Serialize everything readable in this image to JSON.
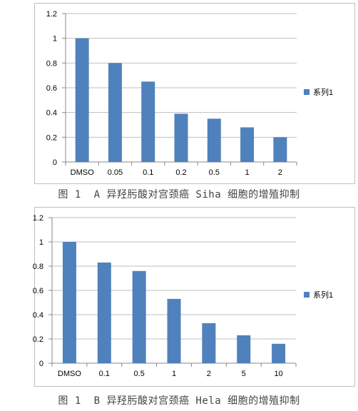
{
  "chart_data": [
    {
      "type": "bar",
      "categories": [
        "DMSO",
        "0.05",
        "0.1",
        "0.2",
        "0.5",
        "1",
        "2"
      ],
      "series": [
        {
          "name": "系列1",
          "values": [
            1.0,
            0.8,
            0.65,
            0.39,
            0.35,
            0.28,
            0.2
          ],
          "color": "#4f81bd"
        }
      ],
      "ylim": [
        0,
        1.2
      ],
      "yticks": [
        "0",
        "0.2",
        "0.4",
        "0.6",
        "0.8",
        "1",
        "1.2"
      ],
      "grid": true,
      "legend": "right",
      "caption": "图 1  A 异羟肟酸对宫颈癌 Siha 细胞的增殖抑制"
    },
    {
      "type": "bar",
      "categories": [
        "DMSO",
        "0.1",
        "0.5",
        "1",
        "2",
        "5",
        "10"
      ],
      "series": [
        {
          "name": "系列1",
          "values": [
            1.0,
            0.83,
            0.76,
            0.53,
            0.33,
            0.23,
            0.16
          ],
          "color": "#4f81bd"
        }
      ],
      "ylim": [
        0,
        1.2
      ],
      "yticks": [
        "0",
        "0.2",
        "0.4",
        "0.6",
        "0.8",
        "1",
        "1.2"
      ],
      "grid": true,
      "legend": "right",
      "caption": "图 1  B 异羟肟酸对宫颈癌 Hela 细胞的增殖抑制"
    }
  ]
}
